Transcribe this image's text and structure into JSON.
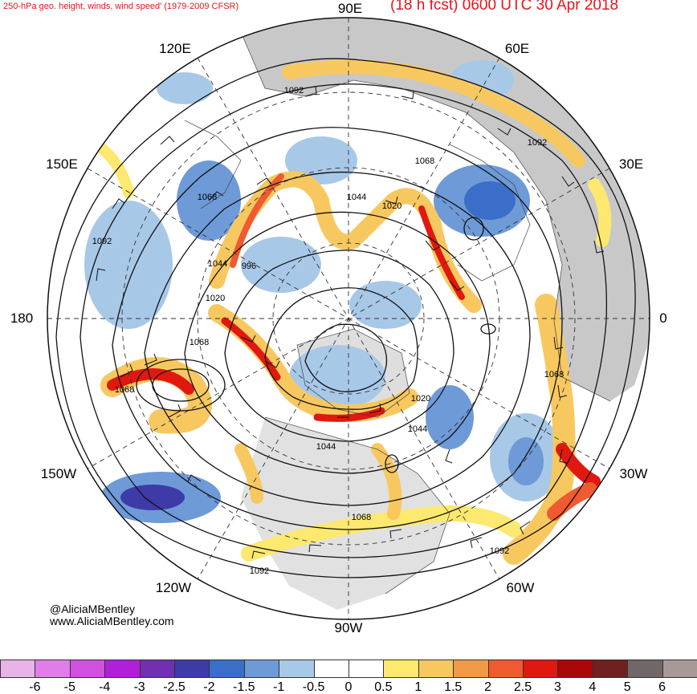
{
  "header": {
    "title_left": "250-hPa geo. height, winds, wind speed' (1979-2009 CFSR)",
    "title_right": "(18 h fcst) 0600 UTC 30 Apr 2018"
  },
  "longitude_labels": {
    "lon_90e": "90E",
    "lon_60e": "60E",
    "lon_120e": "120E",
    "lon_150e": "150E",
    "lon_30e": "30E",
    "lon_180": "180",
    "lon_0": "0",
    "lon_150w": "150W",
    "lon_30w": "30W",
    "lon_120w": "120W",
    "lon_60w": "60W",
    "lon_90w": "90W"
  },
  "contour_labels": {
    "c1": "1092",
    "c2": "1092",
    "c3": "1068",
    "c4": "1044",
    "c5": "1020",
    "c6": "1068",
    "c7": "1092",
    "c8": "1044",
    "c9": "996",
    "c10": "1020",
    "c11": "1068",
    "c12": "1068",
    "c13": "1068",
    "c14": "1020",
    "c15": "1044",
    "c16": "1044",
    "c17": "1068",
    "c18": "1092",
    "c19": "1092"
  },
  "credit": {
    "handle": "@AliciaMBentley",
    "website": "www.AliciaMBentley.com"
  },
  "colorbar": {
    "ticks": [
      "-6",
      "-5",
      "-4",
      "-3",
      "-2.5",
      "-2",
      "-1.5",
      "-1",
      "-0.5",
      "0",
      "0.5",
      "1",
      "1.5",
      "2",
      "2.5",
      "3",
      "4",
      "5",
      "6"
    ],
    "colors": [
      "#e8b4e8",
      "#e07de8",
      "#d050e0",
      "#b020d8",
      "#7030b0",
      "#3e3aa8",
      "#3a6ec8",
      "#6e9ad8",
      "#a8c8e8",
      "#ffffff",
      "#ffffff",
      "#fde870",
      "#f8c860",
      "#f09a48",
      "#f05a30",
      "#e01810",
      "#a80808",
      "#702020",
      "#706868",
      "#a89898"
    ]
  }
}
